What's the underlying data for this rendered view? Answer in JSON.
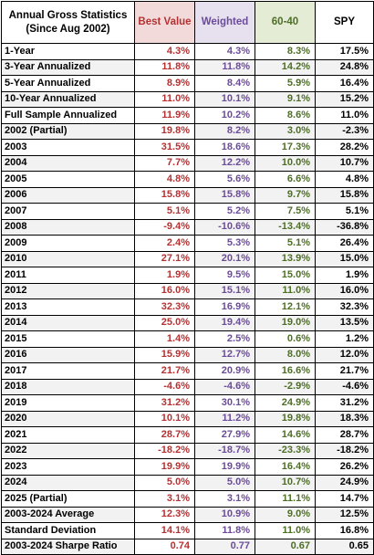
{
  "header": {
    "title_line1": "Annual Gross Statistics",
    "title_line2": "(Since Aug 2002)",
    "columns": [
      "Best Value",
      "Weighted",
      "60-40",
      "SPY"
    ]
  },
  "rows": [
    {
      "label": "1-Year",
      "values": [
        "4.3%",
        "4.3%",
        "8.3%",
        "17.5%"
      ]
    },
    {
      "label": "3-Year Annualized",
      "values": [
        "11.8%",
        "11.8%",
        "14.2%",
        "24.8%"
      ]
    },
    {
      "label": "5-Year Annualized",
      "values": [
        "8.9%",
        "8.4%",
        "5.9%",
        "16.4%"
      ]
    },
    {
      "label": "10-Year Annualized",
      "values": [
        "11.0%",
        "10.1%",
        "9.1%",
        "15.2%"
      ]
    },
    {
      "label": "Full Sample Annualized",
      "values": [
        "11.9%",
        "10.2%",
        "8.6%",
        "11.0%"
      ]
    },
    {
      "label": "2002 (Partial)",
      "values": [
        "19.8%",
        "8.2%",
        "3.0%",
        "-2.3%"
      ]
    },
    {
      "label": "2003",
      "values": [
        "31.5%",
        "18.6%",
        "17.3%",
        "28.2%"
      ]
    },
    {
      "label": "2004",
      "values": [
        "7.7%",
        "12.2%",
        "10.0%",
        "10.7%"
      ]
    },
    {
      "label": "2005",
      "values": [
        "4.8%",
        "5.6%",
        "6.6%",
        "4.8%"
      ]
    },
    {
      "label": "2006",
      "values": [
        "15.8%",
        "15.8%",
        "9.7%",
        "15.8%"
      ]
    },
    {
      "label": "2007",
      "values": [
        "5.1%",
        "5.2%",
        "7.5%",
        "5.1%"
      ]
    },
    {
      "label": "2008",
      "values": [
        "-9.4%",
        "-10.6%",
        "-13.4%",
        "-36.8%"
      ]
    },
    {
      "label": "2009",
      "values": [
        "2.4%",
        "5.3%",
        "5.1%",
        "26.4%"
      ]
    },
    {
      "label": "2010",
      "values": [
        "27.1%",
        "20.1%",
        "13.9%",
        "15.0%"
      ]
    },
    {
      "label": "2011",
      "values": [
        "1.9%",
        "9.5%",
        "15.0%",
        "1.9%"
      ]
    },
    {
      "label": "2012",
      "values": [
        "16.0%",
        "15.1%",
        "11.0%",
        "16.0%"
      ]
    },
    {
      "label": "2013",
      "values": [
        "32.3%",
        "16.9%",
        "12.1%",
        "32.3%"
      ]
    },
    {
      "label": "2014",
      "values": [
        "25.0%",
        "19.4%",
        "19.0%",
        "13.5%"
      ]
    },
    {
      "label": "2015",
      "values": [
        "1.4%",
        "2.5%",
        "0.6%",
        "1.2%"
      ]
    },
    {
      "label": "2016",
      "values": [
        "15.9%",
        "12.7%",
        "8.0%",
        "12.0%"
      ]
    },
    {
      "label": "2017",
      "values": [
        "21.7%",
        "20.9%",
        "16.6%",
        "21.7%"
      ]
    },
    {
      "label": "2018",
      "values": [
        "-4.6%",
        "-4.6%",
        "-2.9%",
        "-4.6%"
      ]
    },
    {
      "label": "2019",
      "values": [
        "31.2%",
        "30.1%",
        "24.9%",
        "31.2%"
      ]
    },
    {
      "label": "2020",
      "values": [
        "10.1%",
        "11.2%",
        "19.8%",
        "18.3%"
      ]
    },
    {
      "label": "2021",
      "values": [
        "28.7%",
        "27.9%",
        "14.6%",
        "28.7%"
      ]
    },
    {
      "label": "2022",
      "values": [
        "-18.2%",
        "-18.7%",
        "-23.3%",
        "-18.2%"
      ]
    },
    {
      "label": "2023",
      "values": [
        "19.9%",
        "19.9%",
        "16.4%",
        "26.2%"
      ]
    },
    {
      "label": "2024",
      "values": [
        "5.0%",
        "5.0%",
        "10.7%",
        "24.9%"
      ]
    },
    {
      "label": "2025 (Partial)",
      "values": [
        "3.1%",
        "3.1%",
        "11.1%",
        "14.7%"
      ]
    },
    {
      "label": "2003-2024 Average",
      "values": [
        "12.3%",
        "10.9%",
        "9.0%",
        "12.5%"
      ]
    },
    {
      "label": "Standard Deviation",
      "values": [
        "14.1%",
        "11.8%",
        "11.0%",
        "16.8%"
      ]
    },
    {
      "label": "2003-2024 Sharpe Ratio",
      "values": [
        "0.74",
        "0.77",
        "0.67",
        "0.65"
      ]
    }
  ],
  "colors": {
    "best_value": "#b53132",
    "weighted": "#6b4c98",
    "sixty_forty": "#4d6e25",
    "spy": "#000000"
  }
}
